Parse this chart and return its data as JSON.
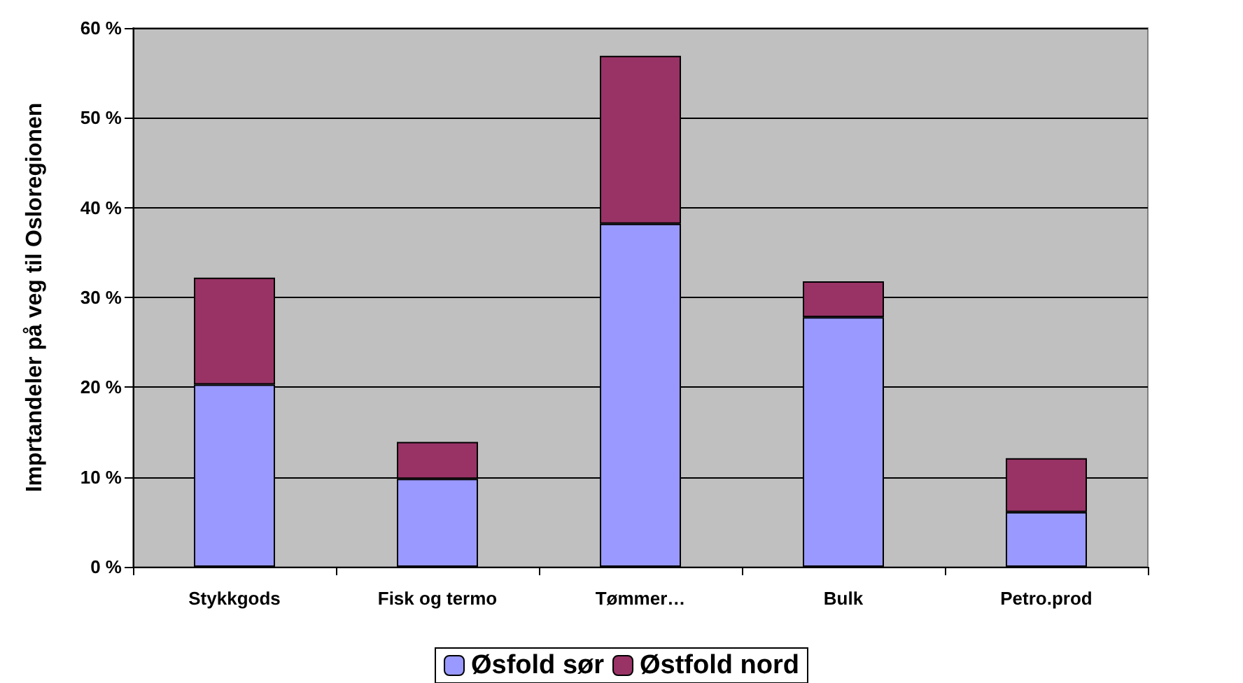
{
  "chart_data": {
    "type": "bar",
    "stacked": true,
    "ylabel": "Imprtandeler på veg til Osloregionen",
    "categories": [
      "Stykkgods",
      "Fisk og termo",
      "Tømmer…",
      "Bulk",
      "Petro.prod"
    ],
    "series": [
      {
        "name": "Øsfold sør",
        "color": "#9999ff",
        "values": [
          20.3,
          9.8,
          38.2,
          27.8,
          6.1
        ]
      },
      {
        "name": "Østfold nord",
        "color": "#993366",
        "values": [
          11.9,
          4.1,
          18.7,
          4.0,
          6.0
        ]
      }
    ],
    "ylim": [
      0,
      60
    ],
    "yticks": [
      {
        "value": 0,
        "label": "0 %"
      },
      {
        "value": 10,
        "label": "10 %"
      },
      {
        "value": 20,
        "label": "20 %"
      },
      {
        "value": 30,
        "label": "30 %"
      },
      {
        "value": 40,
        "label": "40 %"
      },
      {
        "value": 50,
        "label": "50 %"
      },
      {
        "value": 60,
        "label": "60 %"
      }
    ],
    "grid": "y",
    "legend": "bottom"
  }
}
